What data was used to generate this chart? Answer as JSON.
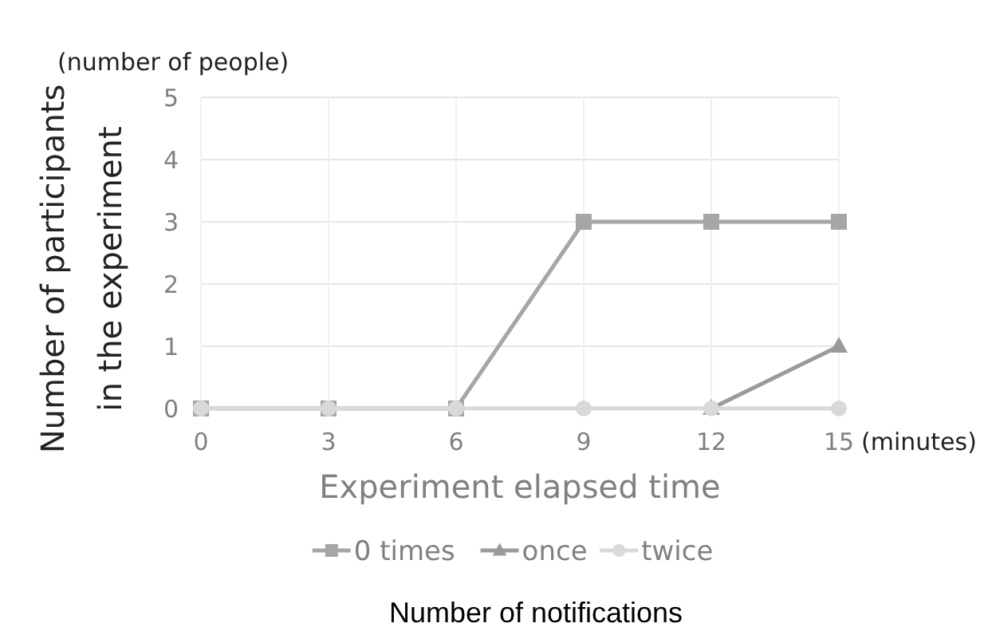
{
  "chart_data": {
    "type": "line",
    "xlabel": "Experiment elapsed time",
    "ylabel": "Number of participants\nin the experiment",
    "legend_title": "Number of notifications",
    "annotations": [
      "(number of people)",
      "(minutes)"
    ],
    "x": [
      0,
      3,
      6,
      9,
      12,
      15
    ],
    "series": [
      {
        "name": "0 times",
        "color": "#a6a6a6",
        "marker": "square",
        "values": [
          0,
          0,
          0,
          3,
          3,
          3
        ]
      },
      {
        "name": "once",
        "color": "#9a9a9a",
        "marker": "triangle",
        "values": [
          null,
          null,
          null,
          null,
          0,
          1
        ]
      },
      {
        "name": "twice",
        "color": "#d9d9d9",
        "marker": "circle",
        "values": [
          0,
          0,
          0,
          0,
          0,
          0
        ]
      }
    ],
    "xlim": [
      0,
      15
    ],
    "xticks": [
      0,
      3,
      6,
      9,
      12,
      15
    ],
    "ylim": [
      0,
      5
    ],
    "yticks": [
      0,
      1,
      2,
      3,
      4,
      5
    ],
    "grid": true,
    "legend": "bottom",
    "line_style": "solid"
  }
}
